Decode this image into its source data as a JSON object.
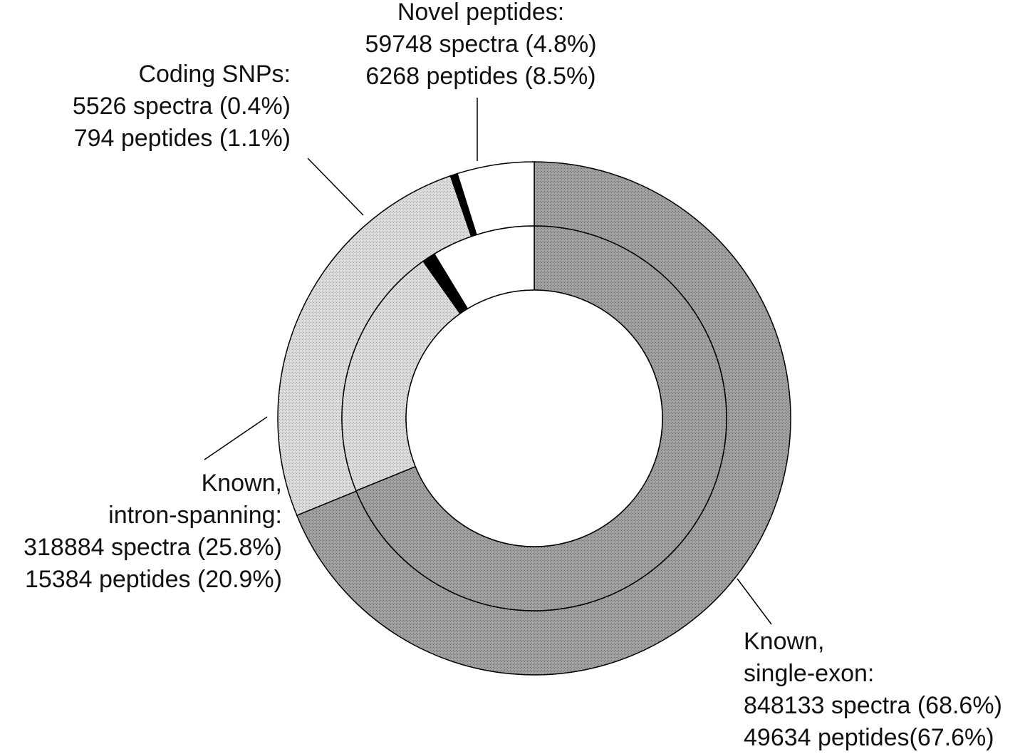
{
  "chart_data": {
    "type": "pie",
    "subtype": "double-donut",
    "title": "",
    "rings": [
      {
        "name": "spectra",
        "position": "outer",
        "categories": [
          "Known, single-exon",
          "Known, intron-spanning",
          "Coding SNPs",
          "Novel peptides"
        ],
        "values": [
          848133,
          318884,
          5526,
          59748
        ],
        "percent": [
          68.6,
          25.8,
          0.4,
          4.8
        ]
      },
      {
        "name": "peptides",
        "position": "inner",
        "categories": [
          "Known, single-exon",
          "Known, intron-spanning",
          "Coding SNPs",
          "Novel peptides"
        ],
        "values": [
          49634,
          15384,
          794,
          6268
        ],
        "percent": [
          67.6,
          20.9,
          1.1,
          8.5
        ]
      }
    ],
    "colors": {
      "Known, single-exon": "#9c9c9c",
      "Known, intron-spanning": "#d6d6d6",
      "Coding SNPs": "#000000",
      "Novel peptides": "#ffffff"
    },
    "labels": {
      "novel": [
        "Novel peptides:",
        "59748 spectra (4.8%)",
        "6268 peptides (8.5%)"
      ],
      "snp": [
        "Coding SNPs:",
        "5526 spectra (0.4%)",
        "794 peptides (1.1%)"
      ],
      "intron": [
        "Known,",
        "intron-spanning:",
        "318884 spectra (25.8%)",
        "15384 peptides (20.9%)"
      ],
      "single": [
        "Known,",
        "single-exon:",
        "848133 spectra (68.6%)",
        "49634 peptides(67.6%)"
      ]
    }
  }
}
